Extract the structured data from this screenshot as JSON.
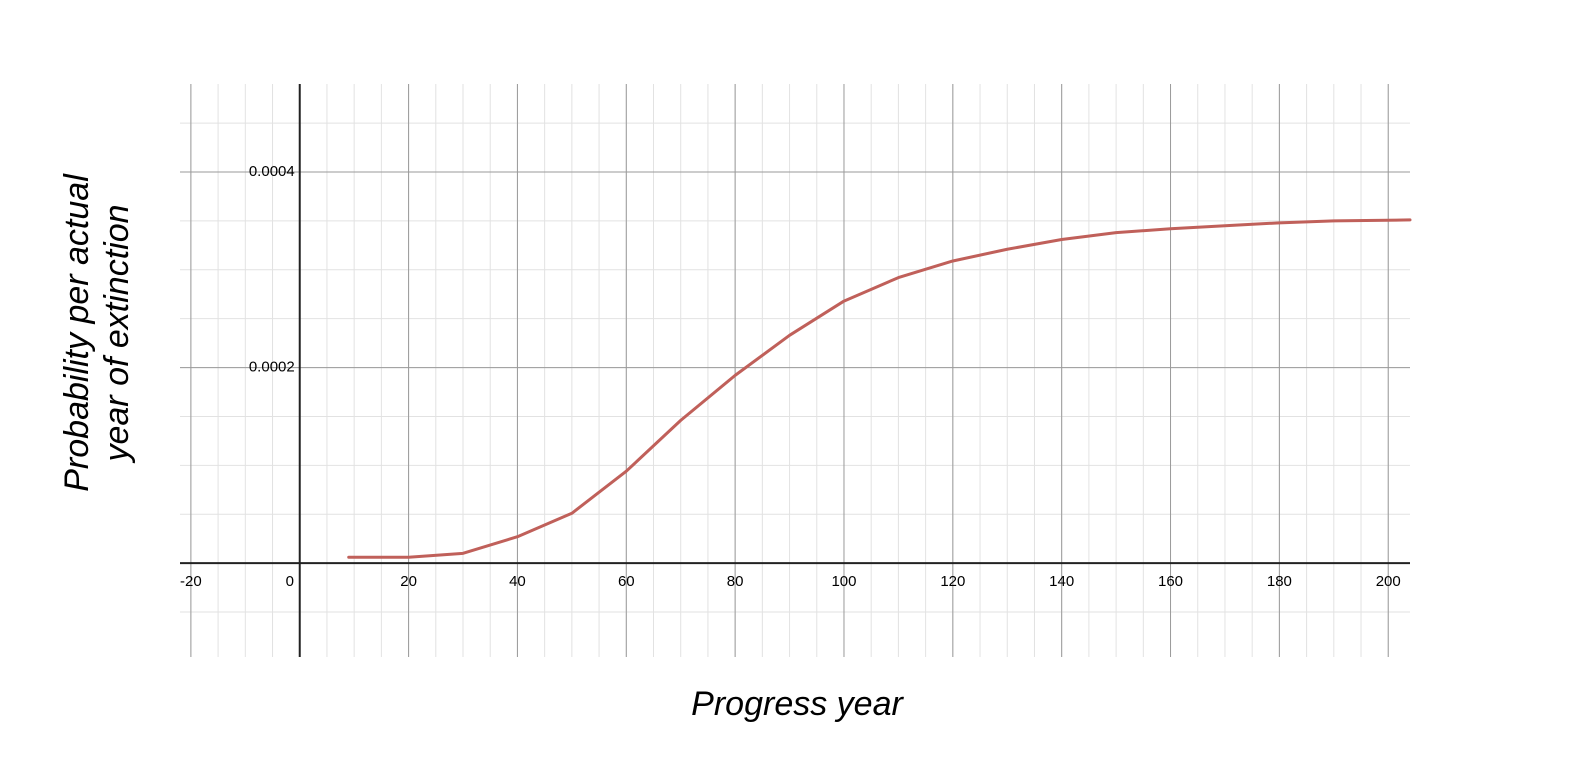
{
  "chart_data": {
    "type": "line",
    "x_label": "Progress year",
    "y_label": [
      "Probability per actual",
      "year of extinction"
    ],
    "x": [
      9,
      20,
      30,
      40,
      50,
      60,
      70,
      80,
      90,
      100,
      110,
      120,
      130,
      140,
      150,
      160,
      170,
      180,
      190,
      204
    ],
    "series": [
      {
        "color": "#c0605a",
        "values": [
          6e-06,
          6e-06,
          1e-05,
          2.7e-05,
          5.1e-05,
          9.4e-05,
          0.000146,
          0.000192,
          0.000233,
          0.000268,
          0.000292,
          0.000309,
          0.000321,
          0.000331,
          0.000338,
          0.000342,
          0.000345,
          0.000348,
          0.00035,
          0.000351
        ]
      }
    ],
    "xlim": [
      -22,
      204
    ],
    "ylim": [
      -9.6e-05,
      0.00049
    ],
    "xticks": [
      -20,
      0,
      20,
      40,
      60,
      80,
      100,
      120,
      140,
      160,
      180,
      200
    ],
    "yticks": [
      0.0002,
      0.0004
    ],
    "grid": true,
    "minor_grid": 4
  }
}
